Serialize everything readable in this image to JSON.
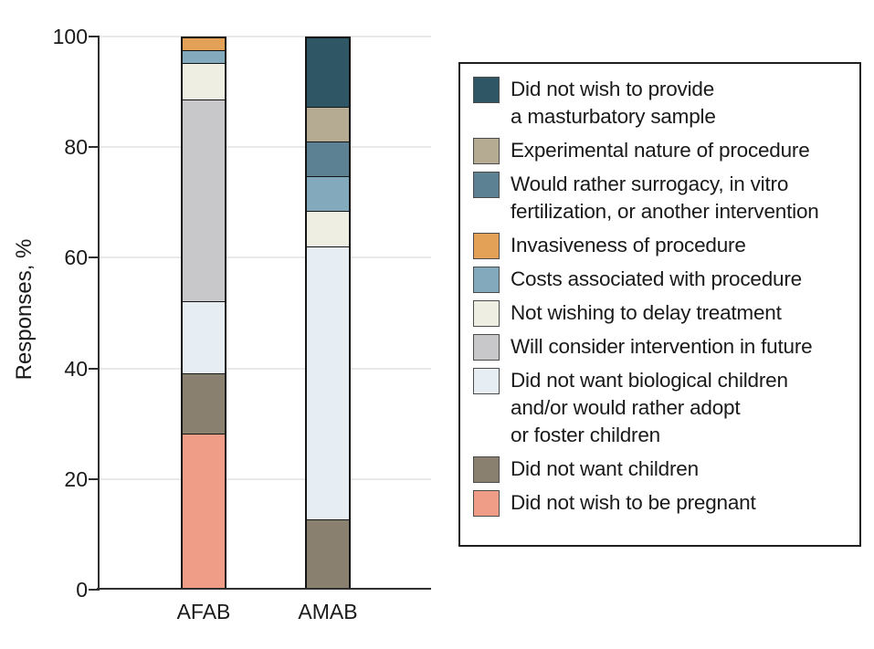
{
  "chart_data": {
    "type": "bar",
    "stacked": true,
    "title": "",
    "ylabel": "Responses, %",
    "xlabel": "",
    "ylim": [
      0,
      100
    ],
    "yticks": [
      0,
      20,
      40,
      60,
      80,
      100
    ],
    "categories": [
      "AFAB",
      "AMAB"
    ],
    "grid": "horizontal",
    "legend_position": "right",
    "stack_note": "segments stack bottom-to-top in reverse legend order; zero values omitted",
    "series": [
      {
        "label": "Did not wish to provide\na masturbatory sample",
        "color": "#2f5664",
        "values": [
          0,
          12.5
        ]
      },
      {
        "label": "Experimental nature of procedure",
        "color": "#b5aa92",
        "values": [
          0,
          6.25
        ]
      },
      {
        "label": "Would rather surrogacy, in vitro\nfertilization, or another intervention",
        "color": "#5c8192",
        "values": [
          0,
          6.25
        ]
      },
      {
        "label": "Invasiveness of procedure",
        "color": "#e2a156",
        "values": [
          2.2,
          0
        ]
      },
      {
        "label": "Costs associated with procedure",
        "color": "#83a9bc",
        "values": [
          2.2,
          6.25
        ]
      },
      {
        "label": "Not wishing to delay treatment",
        "color": "#efeee2",
        "values": [
          6.5,
          6.25
        ]
      },
      {
        "label": "Will consider intervention in future",
        "color": "#c8c7ca",
        "values": [
          37.0,
          0
        ]
      },
      {
        "label": "Did not want biological children\nand/or would rather adopt\nor foster children",
        "color": "#e6eef3",
        "values": [
          13.0,
          50.0
        ]
      },
      {
        "label": "Did not want children",
        "color": "#8a8070",
        "values": [
          10.9,
          12.5
        ]
      },
      {
        "label": "Did not wish to be pregnant",
        "color": "#f09d87",
        "values": [
          28.3,
          0
        ]
      }
    ],
    "style": {
      "background": "#ffffff",
      "axis_color": "#2f2f2f",
      "gridline_color": "#e9e9e9",
      "bar_border_color": "#141414",
      "swatch_border_color": "#4b4b4b",
      "text_color": "#1a1a1a"
    }
  }
}
